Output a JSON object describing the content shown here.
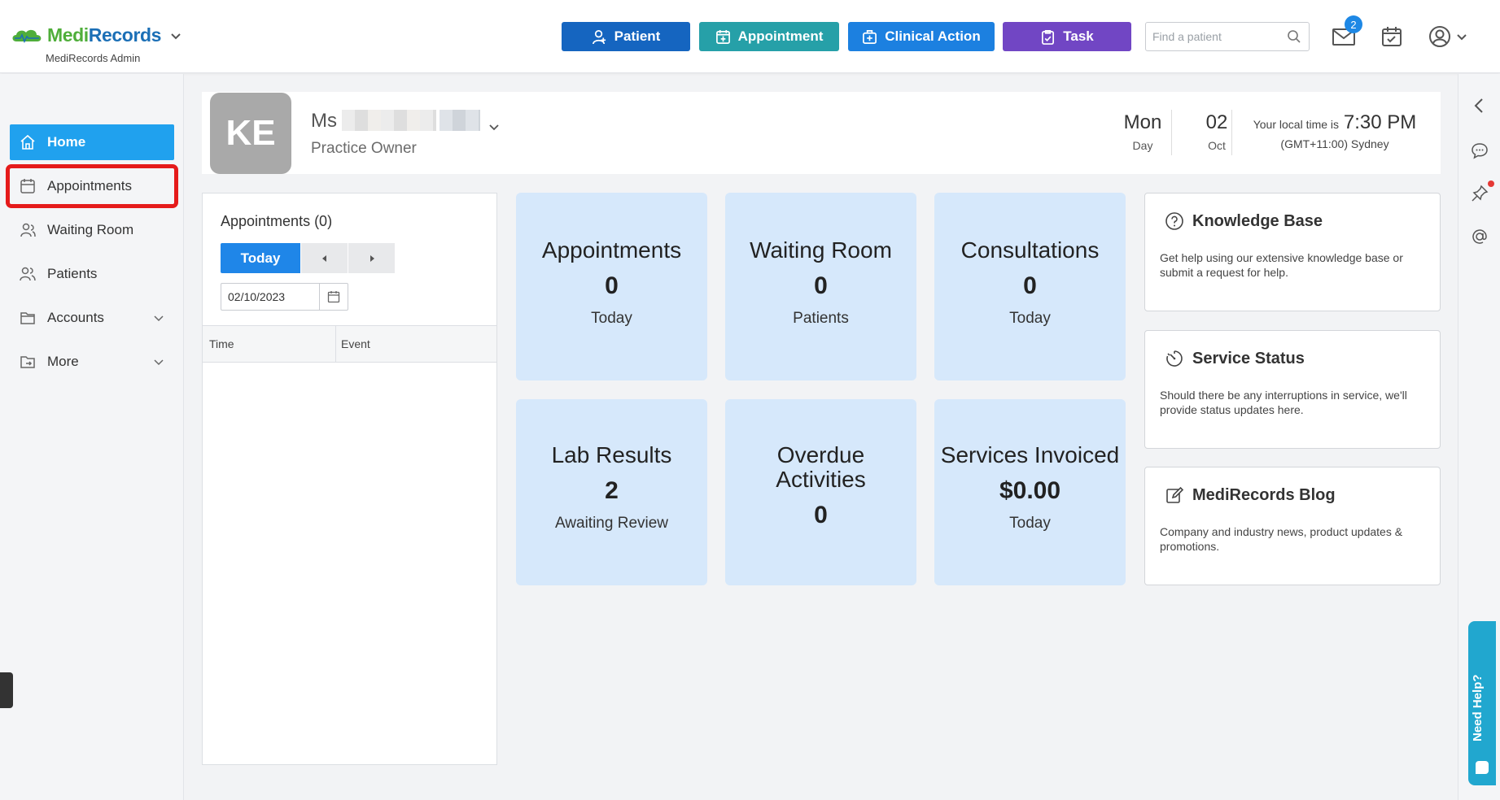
{
  "header": {
    "brand_part1": "Medi",
    "brand_part2": "Records",
    "brand_sub": "MediRecords Admin",
    "buttons": {
      "patient": "Patient",
      "appointment": "Appointment",
      "clinical_action": "Clinical Action",
      "task": "Task"
    },
    "search_placeholder": "Find a patient",
    "mail_badge": "2"
  },
  "sidebar": {
    "items": [
      {
        "label": "Home",
        "icon": "home-icon"
      },
      {
        "label": "Appointments",
        "icon": "calendar-icon"
      },
      {
        "label": "Waiting Room",
        "icon": "waiting-room-icon"
      },
      {
        "label": "Patients",
        "icon": "patients-icon"
      },
      {
        "label": "Accounts",
        "icon": "folder-icon"
      },
      {
        "label": "More",
        "icon": "folder-arrow-icon"
      }
    ]
  },
  "profile": {
    "initials": "KE",
    "salutation": "Ms",
    "role": "Practice Owner",
    "day": "Mon",
    "day_label": "Day",
    "date": "02",
    "month": "Oct",
    "local_time_label": "Your local time is",
    "local_time": "7:30 PM",
    "timezone": "(GMT+11:00) Sydney"
  },
  "appointments_panel": {
    "title": "Appointments (0)",
    "today_label": "Today",
    "date_value": "02/10/2023",
    "col_time": "Time",
    "col_event": "Event"
  },
  "tiles": {
    "appointments": {
      "title": "Appointments",
      "value": "0",
      "sub": "Today"
    },
    "waiting_room": {
      "title": "Waiting Room",
      "value": "0",
      "sub": "Patients"
    },
    "consultations": {
      "title": "Consultations",
      "value": "0",
      "sub": "Today"
    },
    "lab_results": {
      "title": "Lab Results",
      "value": "2",
      "sub": "Awaiting Review"
    },
    "overdue": {
      "title_line1": "Overdue",
      "title_line2": "Activities",
      "value": "0"
    },
    "services_invoiced": {
      "title": "Services Invoiced",
      "value": "$0.00",
      "sub": "Today"
    }
  },
  "cards": {
    "knowledge_base": {
      "title": "Knowledge Base",
      "body": "Get help using our extensive knowledge base or submit a request for help."
    },
    "service_status": {
      "title": "Service Status",
      "body": "Should there be any interruptions in service, we'll provide status updates here."
    },
    "blog": {
      "title": "MediRecords Blog",
      "body": "Company and industry news, product updates & promotions."
    }
  },
  "help_widget": {
    "label": "Need Help?"
  },
  "colors": {
    "patient_btn": "#1565c0",
    "appointment_btn": "#26a0a8",
    "clinical_btn": "#1c80e0",
    "task_btn": "#7146c4",
    "active_nav": "#20a1ee",
    "tile_bg": "#d6e8fb",
    "highlight": "#e51b1b"
  }
}
